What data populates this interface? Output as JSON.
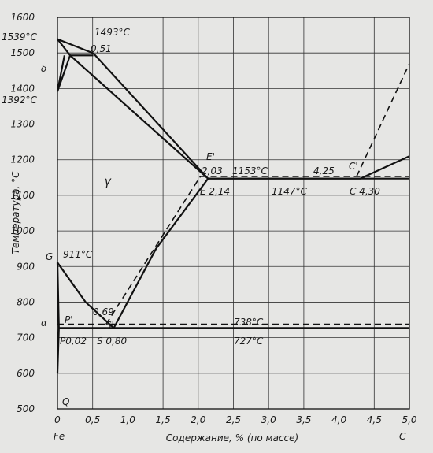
{
  "axes": {
    "ylabel": "Температура, °С",
    "xlabel": "Содержание, % (по массе)",
    "x_left_label": "Fe",
    "x_right_label": "C",
    "xlim": [
      0,
      5.0
    ],
    "ylim": [
      500,
      1600
    ],
    "x_ticks": [
      "0",
      "0,5",
      "1,0",
      "1,5",
      "2,0",
      "2,5",
      "3,0",
      "3,5",
      "4,0",
      "4,5",
      "5,0"
    ],
    "y_ticks": [
      "500",
      "600",
      "700",
      "800",
      "900",
      "1000",
      "1100",
      "1200",
      "1300",
      "1400",
      "1500",
      "1600"
    ]
  },
  "annotations": {
    "t1539": "1539°C",
    "t1493": "1493°C",
    "c051": "0,51",
    "delta": "δ",
    "t1392": "1392°C",
    "t1500": "1500",
    "gamma": "γ",
    "E_prime": "E'",
    "c203": "2,03",
    "t1153": "1153°C",
    "c425": "4,25",
    "C_prime": "C'",
    "E214": "E 2,14",
    "t1147": "1147°C",
    "C430": "C 4,30",
    "G": "G",
    "t911": "911°C",
    "c069": "0,69",
    "P_prime": "P'",
    "alpha": "α",
    "t738": "738°C",
    "P002": "P0,02",
    "S080": "S 0,80",
    "S_prime": "S'",
    "t727": "727°C",
    "Q": "Q"
  },
  "chart_data": {
    "type": "phase-diagram",
    "xlabel": "Содержание, % (по массе)",
    "ylabel": "Температура, °С",
    "xlim": [
      0,
      5.0
    ],
    "ylim": [
      500,
      1600
    ],
    "grid": true,
    "solid_lines": [
      {
        "points": [
          [
            0,
            1539
          ],
          [
            0.51,
            1499
          ],
          [
            2.14,
            1147
          ],
          [
            4.3,
            1147
          ],
          [
            5.0,
            1210
          ]
        ]
      },
      {
        "points": [
          [
            0,
            1539
          ],
          [
            0.18,
            1493
          ]
        ]
      },
      {
        "points": [
          [
            0.18,
            1493
          ],
          [
            2.14,
            1147
          ]
        ]
      },
      {
        "points": [
          [
            0.18,
            1493
          ],
          [
            0.51,
            1493
          ]
        ]
      },
      {
        "points": [
          [
            0.1,
            1493
          ],
          [
            0,
            1392
          ]
        ]
      },
      {
        "points": [
          [
            0.18,
            1493
          ],
          [
            0,
            1392
          ]
        ]
      },
      {
        "points": [
          [
            2.14,
            1147
          ],
          [
            4.3,
            1147
          ],
          [
            5.0,
            1147
          ]
        ]
      },
      {
        "points": [
          [
            0,
            911
          ],
          [
            0.4,
            800
          ],
          [
            0.8,
            727
          ]
        ]
      },
      {
        "points": [
          [
            0.8,
            727
          ],
          [
            1.4,
            950
          ],
          [
            2.14,
            1147
          ]
        ]
      },
      {
        "points": [
          [
            0,
            911
          ],
          [
            0.02,
            727
          ],
          [
            0,
            600
          ]
        ]
      },
      {
        "points": [
          [
            0.02,
            727
          ],
          [
            5.0,
            727
          ]
        ]
      }
    ],
    "dashed_lines": [
      {
        "points": [
          [
            2.03,
            1153
          ],
          [
            5.0,
            1153
          ]
        ]
      },
      {
        "points": [
          [
            0.69,
            738
          ],
          [
            2.03,
            1153
          ]
        ]
      },
      {
        "points": [
          [
            0,
            738
          ],
          [
            5.0,
            738
          ]
        ]
      },
      {
        "points": [
          [
            4.25,
            1153
          ],
          [
            5.0,
            1470
          ]
        ]
      }
    ],
    "points": [
      {
        "label": "1539°C",
        "x": 0,
        "y": 1539
      },
      {
        "label": "1493°C",
        "x": 0.18,
        "y": 1493
      },
      {
        "label": "1392°C",
        "x": 0,
        "y": 1392
      },
      {
        "label": "E 2,14",
        "x": 2.14,
        "y": 1147
      },
      {
        "label": "E' 2,03",
        "x": 2.03,
        "y": 1153
      },
      {
        "label": "C 4,30",
        "x": 4.3,
        "y": 1147
      },
      {
        "label": "C' 4,25",
        "x": 4.25,
        "y": 1153
      },
      {
        "label": "911°C",
        "x": 0,
        "y": 911
      },
      {
        "label": "S 0,80",
        "x": 0.8,
        "y": 727
      },
      {
        "label": "S' 0,69",
        "x": 0.69,
        "y": 738
      },
      {
        "label": "P0,02",
        "x": 0.02,
        "y": 727
      }
    ]
  }
}
